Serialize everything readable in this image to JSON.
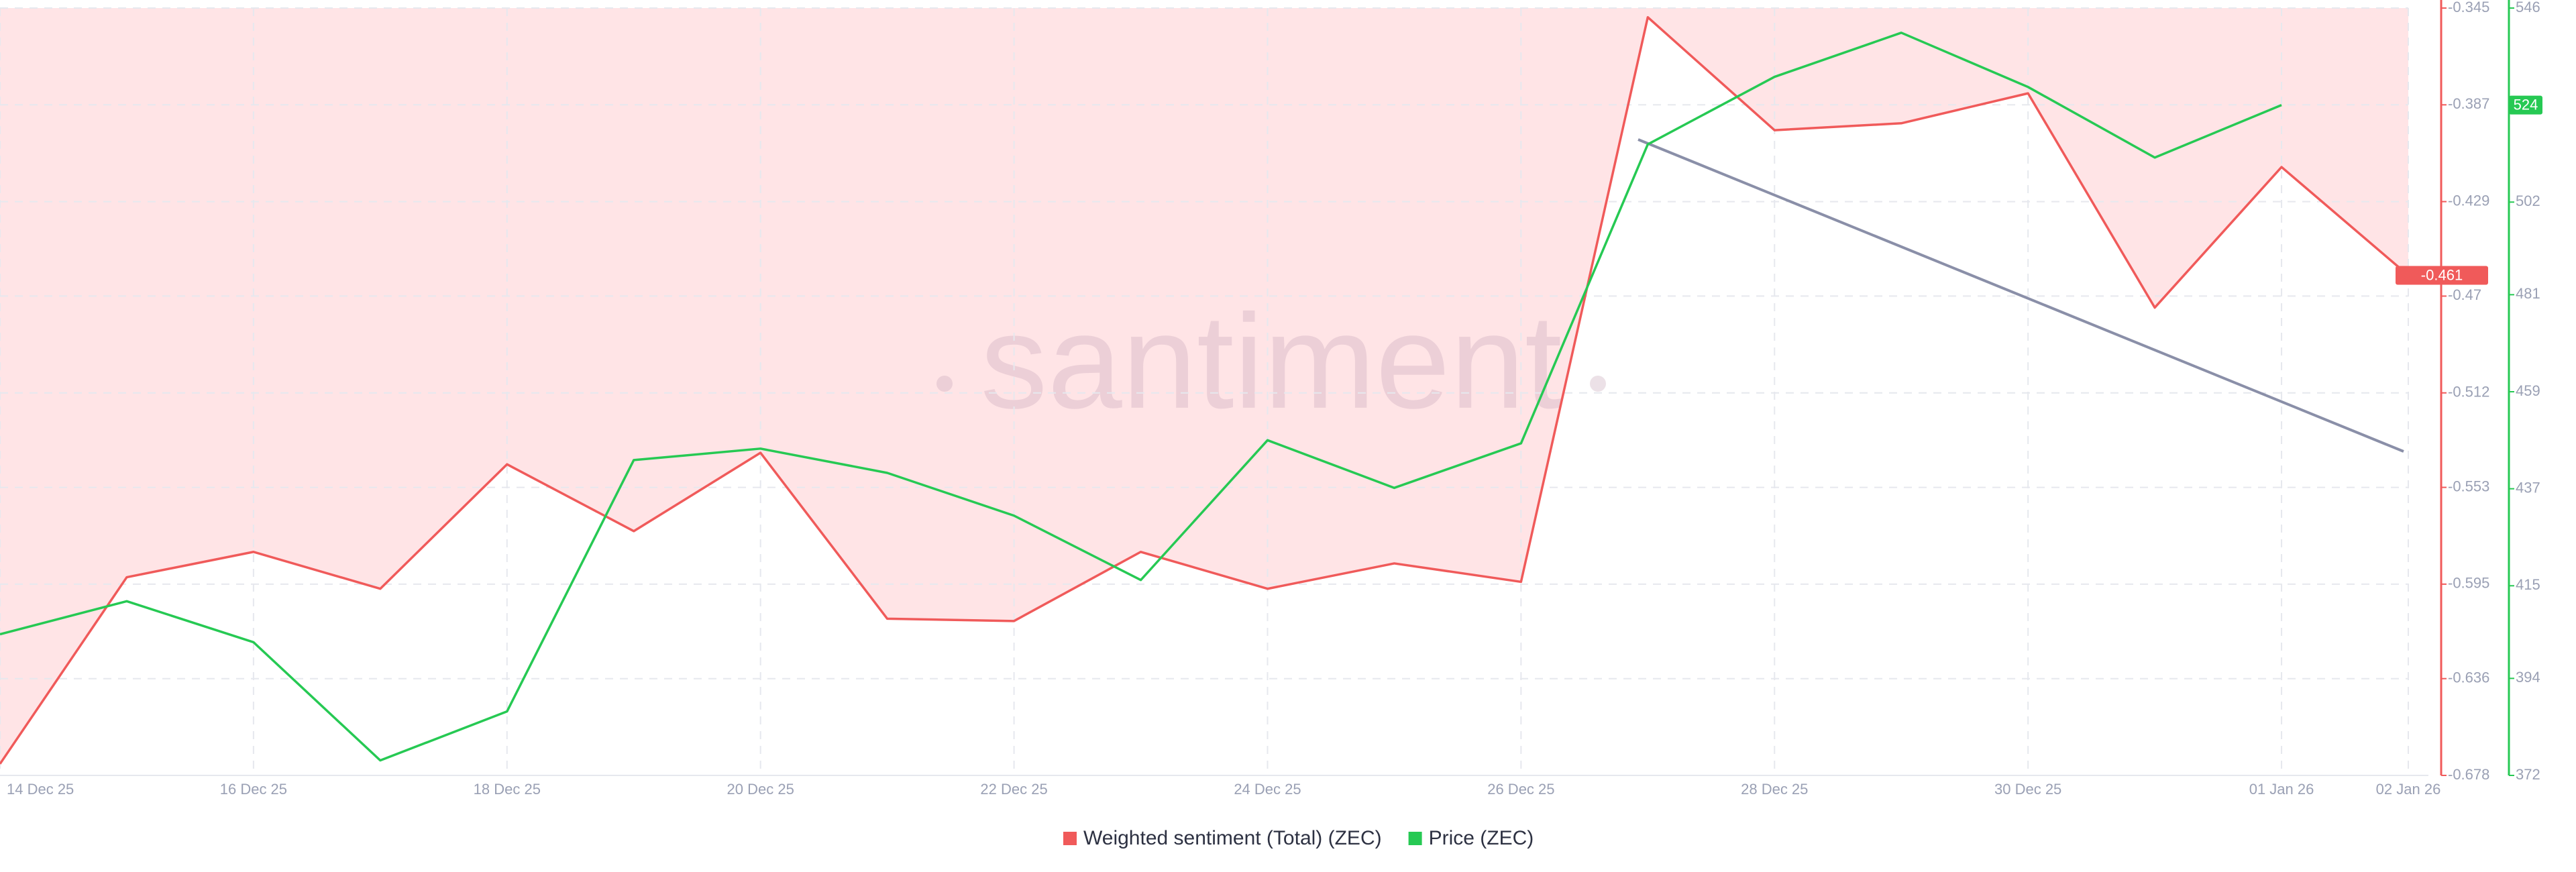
{
  "chart_data": {
    "type": "line",
    "watermark": "santiment",
    "categories": [
      "14 Dec 25",
      null,
      "16 Dec 25",
      null,
      "18 Dec 25",
      null,
      "20 Dec 25",
      null,
      "22 Dec 25",
      null,
      "24 Dec 25",
      null,
      "26 Dec 25",
      null,
      "28 Dec 25",
      null,
      "30 Dec 25",
      null,
      "01 Jan 26",
      "02 Jan 26"
    ],
    "series": [
      {
        "name": "Weighted sentiment (Total) (ZEC)",
        "color": "#f05a5a",
        "axis": "y",
        "values": [
          -0.673,
          -0.592,
          -0.581,
          -0.597,
          -0.543,
          -0.572,
          -0.538,
          -0.61,
          -0.611,
          -0.581,
          -0.597,
          -0.586,
          -0.594,
          -0.349,
          -0.398,
          -0.395,
          -0.382,
          -0.475,
          -0.414,
          -0.461
        ]
      },
      {
        "name": "Price (ZEC)",
        "color": "#26c953",
        "axis": "y2",
        "values": [
          404.0,
          411.5,
          402.2,
          375.4,
          386.5,
          443.5,
          446.1,
          440.6,
          430.9,
          416.3,
          448.0,
          437.2,
          447.3,
          515.1,
          530.4,
          540.4,
          528.1,
          512.1,
          524,
          null
        ]
      }
    ],
    "ylim": [
      -0.678,
      -0.345
    ],
    "yticks": [
      -0.678,
      -0.636,
      -0.595,
      -0.553,
      -0.512,
      -0.47,
      -0.429,
      -0.387,
      -0.345
    ],
    "y2lim": [
      372,
      546
    ],
    "y2ticks": [
      372,
      394,
      415,
      437,
      459,
      481,
      502,
      524,
      546
    ],
    "grid": true,
    "legend": "bottom"
  }
}
